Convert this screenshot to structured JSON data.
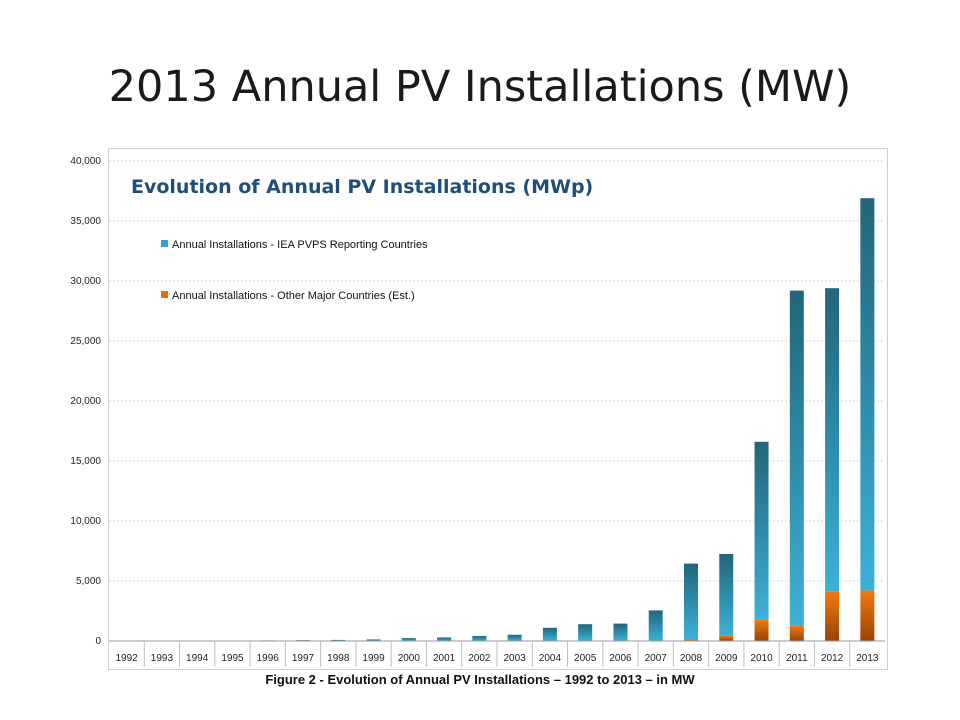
{
  "slide": {
    "title": "2013 Annual PV Installations (MW)",
    "caption": "Figure 2 - Evolution of Annual PV Installations – 1992 to 2013 – in MW"
  },
  "chart_data": {
    "type": "bar",
    "stacked": true,
    "title": "Evolution of Annual PV Installations (MWp)",
    "categories": [
      "1992",
      "1993",
      "1994",
      "1995",
      "1996",
      "1997",
      "1998",
      "1999",
      "2000",
      "2001",
      "2002",
      "2003",
      "2004",
      "2005",
      "2006",
      "2007",
      "2008",
      "2009",
      "2010",
      "2011",
      "2012",
      "2013"
    ],
    "series": [
      {
        "name": "Annual Installations - Other Major Countries (Est.)",
        "color": "#e46c0a",
        "values": [
          0,
          0,
          0,
          0,
          0,
          0,
          0,
          0,
          0,
          0,
          0,
          0,
          0,
          0,
          0,
          0,
          80,
          450,
          1800,
          1300,
          4100,
          4200
        ]
      },
      {
        "name": "Annual Installations - IEA PVPS Reporting Countries",
        "color": "#31a4c8",
        "values": [
          30,
          30,
          30,
          40,
          50,
          70,
          90,
          130,
          240,
          300,
          420,
          520,
          1100,
          1400,
          1450,
          2550,
          6370,
          6800,
          14800,
          27900,
          25300,
          32700
        ]
      }
    ],
    "ylim": [
      0,
      40000
    ],
    "yticks": [
      "0",
      "5,000",
      "10,000",
      "15,000",
      "20,000",
      "25,000",
      "30,000",
      "35,000",
      "40,000"
    ],
    "ytick_values": [
      0,
      5000,
      10000,
      15000,
      20000,
      25000,
      30000,
      35000,
      40000
    ],
    "grid": true,
    "legend": "top-left"
  }
}
